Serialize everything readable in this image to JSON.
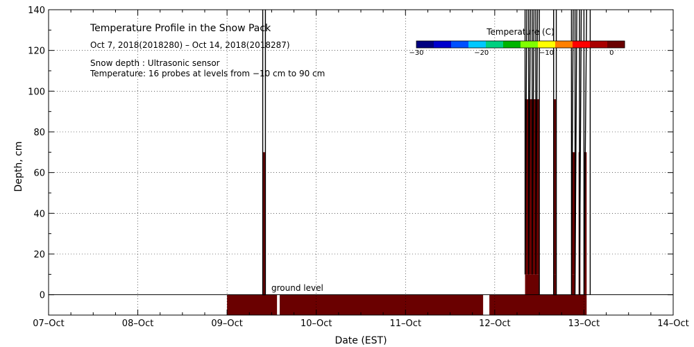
{
  "chart_data": {
    "type": "heatmap",
    "title": "Temperature Profile in the Snow Pack",
    "date_range": "Oct  7, 2018(2018280) – Oct 14, 2018(2018287)",
    "info_lines": [
      "Snow depth : Ultrasonic sensor",
      "Temperature: 16 probes at levels from −10 cm to 90 cm"
    ],
    "xlabel": "Date (EST)",
    "ylabel": "Depth, cm",
    "xlim": [
      0,
      7
    ],
    "ylim": [
      -10,
      140
    ],
    "x_ticks": [
      {
        "x": 0,
        "label": "07–Oct"
      },
      {
        "x": 1,
        "label": "08–Oct"
      },
      {
        "x": 2,
        "label": "09–Oct"
      },
      {
        "x": 3,
        "label": "10–Oct"
      },
      {
        "x": 4,
        "label": "11–Oct"
      },
      {
        "x": 5,
        "label": "12–Oct"
      },
      {
        "x": 6,
        "label": "13–Oct"
      },
      {
        "x": 7,
        "label": "14–Oct"
      }
    ],
    "y_ticks": [
      0,
      20,
      40,
      60,
      80,
      100,
      120,
      140
    ],
    "grid": true,
    "ground_level_label": "ground level",
    "colorbar": {
      "title": "Temperature (C)",
      "ticks": [
        {
          "value": -30,
          "label": "−30"
        },
        {
          "value": -20,
          "label": "−20"
        },
        {
          "value": -10,
          "label": "−10"
        },
        {
          "value": 0,
          "label": "0"
        }
      ],
      "range": [
        -30,
        2
      ],
      "colors": [
        "#000080",
        "#0000cd",
        "#0050ff",
        "#00c8ff",
        "#00d080",
        "#00b400",
        "#80ff00",
        "#ffff00",
        "#ff8000",
        "#ff0000",
        "#aa0000",
        "#6a0000"
      ]
    },
    "cells": [
      {
        "x0": 2.0,
        "x1": 2.56,
        "y0": -10,
        "y1": 0,
        "temp": 0.5
      },
      {
        "x0": 2.59,
        "x1": 4.87,
        "y0": -10,
        "y1": 0,
        "temp": 0.5
      },
      {
        "x0": 4.94,
        "x1": 6.02,
        "y0": -10,
        "y1": 0,
        "temp": 0.5
      },
      {
        "x0": 5.34,
        "x1": 5.5,
        "y0": 0,
        "y1": 10,
        "temp": 0
      },
      {
        "x0": 5.34,
        "x1": 5.5,
        "y0": 10,
        "y1": 96,
        "temp": 1.5
      },
      {
        "x0": 5.4,
        "x1": 5.42,
        "y0": 70,
        "y1": 96,
        "temp": 2
      },
      {
        "x0": 5.44,
        "x1": 5.46,
        "y0": 70,
        "y1": 96,
        "temp": 2
      },
      {
        "x0": 5.66,
        "x1": 5.69,
        "y0": 0,
        "y1": 10,
        "temp": 0
      },
      {
        "x0": 5.66,
        "x1": 5.69,
        "y0": 10,
        "y1": 96,
        "temp": 1.5
      },
      {
        "x0": 5.86,
        "x1": 5.9,
        "y0": 0,
        "y1": 10,
        "temp": 0
      },
      {
        "x0": 5.86,
        "x1": 5.9,
        "y0": 10,
        "y1": 70,
        "temp": 1.5
      },
      {
        "x0": 5.94,
        "x1": 5.96,
        "y0": -10,
        "y1": 70,
        "temp": 1.5
      },
      {
        "x0": 6.0,
        "x1": 6.03,
        "y0": -10,
        "y1": 70,
        "temp": 1.5
      },
      {
        "x0": 2.4,
        "x1": 2.43,
        "y0": 0,
        "y1": 70,
        "temp": 1.2
      }
    ],
    "snow_depth_segments": [
      [
        [
          2.4,
          140
        ],
        [
          2.4,
          0
        ],
        [
          2.43,
          0
        ],
        [
          2.43,
          140
        ]
      ],
      [
        [
          5.34,
          140
        ],
        [
          5.34,
          10
        ],
        [
          5.36,
          140
        ]
      ],
      [
        [
          5.38,
          140
        ],
        [
          5.38,
          10
        ],
        [
          5.4,
          140
        ]
      ],
      [
        [
          5.42,
          140
        ],
        [
          5.42,
          10
        ],
        [
          5.44,
          140
        ]
      ],
      [
        [
          5.46,
          140
        ],
        [
          5.46,
          10
        ],
        [
          5.48,
          140
        ]
      ],
      [
        [
          5.5,
          140
        ],
        [
          5.5,
          0
        ],
        [
          5.5,
          140
        ]
      ],
      [
        [
          5.66,
          140
        ],
        [
          5.66,
          0
        ],
        [
          5.69,
          0
        ],
        [
          5.69,
          140
        ]
      ],
      [
        [
          5.86,
          140
        ],
        [
          5.86,
          0
        ],
        [
          5.88,
          140
        ]
      ],
      [
        [
          5.9,
          140
        ],
        [
          5.9,
          0
        ],
        [
          5.92,
          140
        ]
      ],
      [
        [
          5.95,
          140
        ],
        [
          5.95,
          0
        ],
        [
          5.97,
          140
        ]
      ],
      [
        [
          6.0,
          140
        ],
        [
          6.0,
          0
        ],
        [
          6.03,
          140
        ]
      ],
      [
        [
          6.07,
          140
        ],
        [
          6.07,
          0
        ]
      ]
    ],
    "colors": {
      "ground": "#6a0000",
      "snow_line": "#000000",
      "grid": "#000000",
      "axis": "#000000"
    }
  }
}
